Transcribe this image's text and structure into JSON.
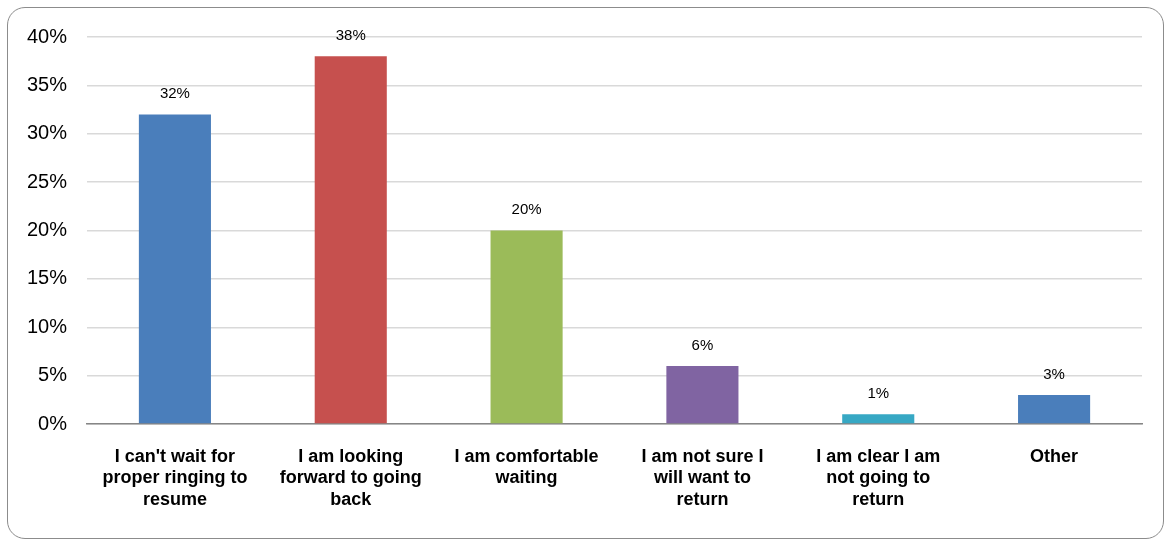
{
  "chart_data": {
    "type": "bar",
    "categories": [
      "I can't wait for proper ringing to resume",
      "I am looking forward to going back",
      "I am comfortable waiting",
      "I am not sure I will want to return",
      "I am clear I am not going to return",
      "Other"
    ],
    "values": [
      32,
      38,
      20,
      6,
      1,
      3
    ],
    "colors": [
      "#4a7ebb",
      "#c6504e",
      "#9bbb59",
      "#8064a2",
      "#37a8c4",
      "#4a7ebb"
    ],
    "value_labels": [
      "32%",
      "38%",
      "20%",
      "6%",
      "1%",
      "3%"
    ],
    "ylim": [
      0,
      40
    ],
    "yticks": [
      {
        "value": 0,
        "label": "0%"
      },
      {
        "value": 5,
        "label": "5%"
      },
      {
        "value": 10,
        "label": "10%"
      },
      {
        "value": 15,
        "label": "15%"
      },
      {
        "value": 20,
        "label": "20%"
      },
      {
        "value": 25,
        "label": "25%"
      },
      {
        "value": 30,
        "label": "30%"
      },
      {
        "value": 35,
        "label": "35%"
      },
      {
        "value": 40,
        "label": "40%"
      }
    ],
    "grid": "y"
  }
}
